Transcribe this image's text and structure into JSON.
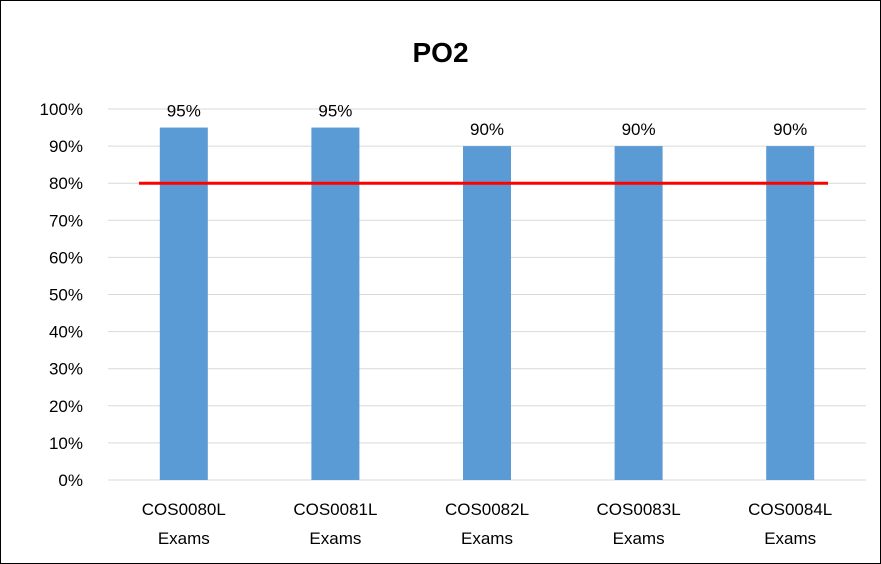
{
  "chart_data": {
    "type": "bar",
    "title": "PO2",
    "categories": [
      [
        "COS0080L",
        "Exams"
      ],
      [
        "COS0081L",
        "Exams"
      ],
      [
        "COS0082L",
        "Exams"
      ],
      [
        "COS0083L",
        "Exams"
      ],
      [
        "COS0084L",
        "Exams"
      ]
    ],
    "values": [
      95,
      95,
      90,
      90,
      90
    ],
    "data_labels": [
      "95%",
      "95%",
      "90%",
      "90%",
      "90%"
    ],
    "y_ticks": [
      "0%",
      "10%",
      "20%",
      "30%",
      "40%",
      "50%",
      "60%",
      "70%",
      "80%",
      "90%",
      "100%"
    ],
    "ylim": [
      0,
      100
    ],
    "target_line": 80,
    "grid": true,
    "legend": "none",
    "colors": {
      "bar": "#5B9BD5",
      "target_line": "#FF0000",
      "grid": "#D9D9D9",
      "border": "#000000"
    }
  }
}
